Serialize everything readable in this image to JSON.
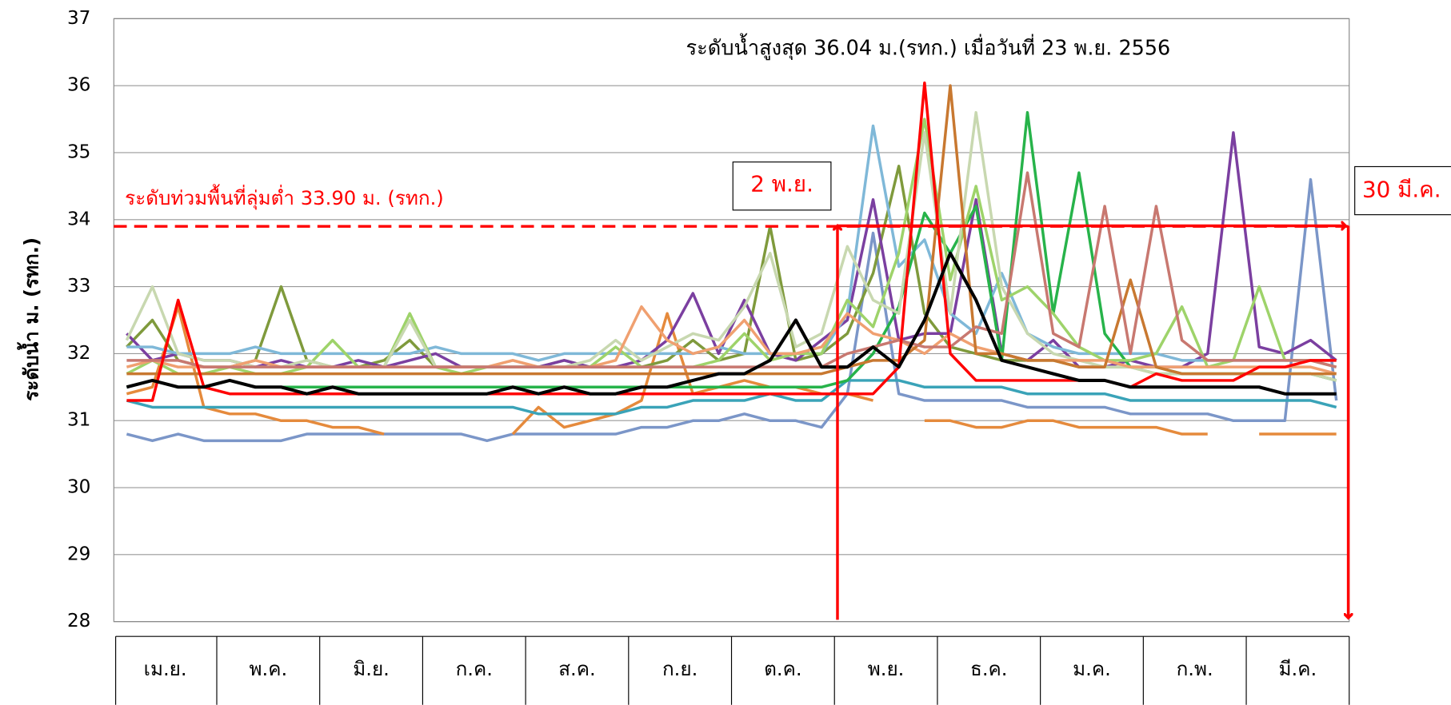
{
  "chart_data": {
    "type": "line",
    "ylabel": "ระดับน้ำ ม. (รทก.)",
    "annotations": {
      "max_level": "ระดับน้ำสูงสุด 36.04 ม.(รทก.) เมื่อวันที่ 23 พ.ย. 2556",
      "flood_level": "ระดับท่วมพื้นที่ลุ่มต่ำ 33.90 ม. (รทก.)",
      "start": "2 พ.ย.",
      "end": "30 มี.ค."
    },
    "threshold": 33.9,
    "threshold_color": "#ff0000",
    "ylim": [
      28,
      37
    ],
    "yticks": [
      28,
      29,
      30,
      31,
      32,
      33,
      34,
      35,
      36,
      37
    ],
    "grid": true,
    "categories": [
      "เม.ย.",
      null,
      null,
      null,
      "พ.ค.",
      null,
      null,
      null,
      "มิ.ย.",
      null,
      null,
      null,
      "ก.ค.",
      null,
      null,
      null,
      "ส.ค.",
      null,
      null,
      null,
      "ก.ย.",
      null,
      null,
      null,
      "ต.ค.",
      null,
      null,
      null,
      "พ.ย.",
      null,
      null,
      null,
      "ธ.ค.",
      null,
      null,
      null,
      "ม.ค.",
      null,
      null,
      null,
      "ก.พ.",
      null,
      null,
      null,
      "มี.ค.",
      null,
      null,
      null
    ],
    "series": [
      {
        "color": "#7b96c8",
        "width": 3,
        "values": [
          30.8,
          30.7,
          30.8,
          30.7,
          30.7,
          30.7,
          30.7,
          30.8,
          30.8,
          30.8,
          30.8,
          30.8,
          30.8,
          30.8,
          30.7,
          30.8,
          30.8,
          30.8,
          30.8,
          30.8,
          30.9,
          30.9,
          31.0,
          31.0,
          31.1,
          31.0,
          31.0,
          30.9,
          31.4,
          33.8,
          31.4,
          31.3,
          31.3,
          31.3,
          31.3,
          31.2,
          31.2,
          31.2,
          31.2,
          31.1,
          31.1,
          31.1,
          31.1,
          31.0,
          31.0,
          31.0,
          34.6,
          31.3
        ]
      },
      {
        "color": "#e58a3c",
        "width": 3,
        "values": [
          31.4,
          31.5,
          32.7,
          31.2,
          31.1,
          31.1,
          31.0,
          31.0,
          30.9,
          30.9,
          30.8,
          null,
          null,
          null,
          null,
          30.8,
          31.2,
          30.9,
          31.0,
          31.1,
          31.3,
          32.6,
          31.4,
          31.5,
          31.6,
          31.5,
          31.5,
          31.4,
          31.4,
          31.3,
          null,
          31.0,
          31.0,
          30.9,
          30.9,
          31.0,
          31.0,
          30.9,
          30.9,
          30.9,
          30.9,
          30.8,
          30.8,
          null,
          30.8,
          30.8,
          30.8,
          30.8
        ]
      },
      {
        "color": "#3aa3b8",
        "width": 3,
        "values": [
          31.3,
          31.2,
          31.2,
          31.2,
          31.2,
          31.2,
          31.2,
          31.2,
          31.2,
          31.2,
          31.2,
          31.2,
          31.2,
          31.2,
          31.2,
          31.2,
          31.1,
          31.1,
          31.1,
          31.1,
          31.2,
          31.2,
          31.3,
          31.3,
          31.3,
          31.4,
          31.3,
          31.3,
          31.6,
          31.6,
          31.6,
          31.5,
          31.5,
          31.5,
          31.5,
          31.4,
          31.4,
          31.4,
          31.4,
          31.3,
          31.3,
          31.3,
          31.3,
          31.3,
          31.3,
          31.3,
          31.3,
          31.2
        ]
      },
      {
        "color": "#7f9a3c",
        "width": 3,
        "values": [
          32.1,
          32.5,
          31.9,
          31.8,
          31.8,
          31.9,
          33.0,
          31.9,
          31.8,
          31.8,
          31.9,
          32.2,
          31.8,
          31.8,
          31.8,
          31.8,
          31.8,
          31.9,
          31.8,
          31.8,
          31.8,
          31.9,
          32.2,
          31.9,
          32.0,
          33.9,
          31.9,
          32.0,
          32.3,
          33.2,
          34.8,
          32.6,
          32.1,
          32.0,
          31.9,
          31.9,
          31.9,
          31.8,
          31.8,
          31.8,
          31.7,
          31.7,
          31.7,
          31.7,
          31.7,
          31.7,
          31.7,
          31.6
        ]
      },
      {
        "color": "#7b3fa0",
        "width": 3,
        "values": [
          32.3,
          31.9,
          32.0,
          31.9,
          31.9,
          31.8,
          31.9,
          31.8,
          31.8,
          31.9,
          31.8,
          31.9,
          32.0,
          31.8,
          31.8,
          31.8,
          31.8,
          31.9,
          31.8,
          31.8,
          31.9,
          32.2,
          32.9,
          32.0,
          32.8,
          32.0,
          31.9,
          32.2,
          32.5,
          34.3,
          32.2,
          32.3,
          32.3,
          34.3,
          32.0,
          31.9,
          32.2,
          31.8,
          31.8,
          31.9,
          31.8,
          31.8,
          32.0,
          35.3,
          32.1,
          32.0,
          32.2,
          31.9
        ]
      },
      {
        "color": "#7fb8d8",
        "width": 3,
        "values": [
          32.1,
          32.1,
          32.0,
          32.0,
          32.0,
          32.1,
          32.0,
          32.0,
          32.0,
          32.0,
          32.0,
          32.0,
          32.1,
          32.0,
          32.0,
          32.0,
          31.9,
          32.0,
          32.0,
          32.0,
          32.0,
          32.0,
          32.0,
          32.1,
          32.0,
          32.0,
          32.0,
          32.0,
          32.6,
          35.4,
          33.3,
          33.7,
          32.6,
          32.3,
          33.2,
          32.3,
          32.1,
          32.0,
          32.0,
          32.0,
          32.0,
          31.9,
          31.9,
          31.9,
          31.9,
          31.9,
          31.9,
          31.9
        ]
      },
      {
        "color": "#27b34a",
        "width": 3,
        "values": [
          31.5,
          31.6,
          31.5,
          31.5,
          31.6,
          31.5,
          31.5,
          31.5,
          31.5,
          31.5,
          31.5,
          31.5,
          31.5,
          31.5,
          31.5,
          31.5,
          31.5,
          31.5,
          31.5,
          31.5,
          31.5,
          31.5,
          31.5,
          31.5,
          31.5,
          31.5,
          31.5,
          31.5,
          31.6,
          32.0,
          32.7,
          34.1,
          33.5,
          34.2,
          31.9,
          35.6,
          32.6,
          34.7,
          32.3,
          31.8,
          31.8,
          31.7,
          31.7,
          31.7,
          31.7,
          31.7,
          31.7,
          31.6
        ]
      },
      {
        "color": "#9ed36a",
        "width": 3,
        "values": [
          31.7,
          31.9,
          31.7,
          31.7,
          31.8,
          31.7,
          31.7,
          31.8,
          32.2,
          31.8,
          31.8,
          32.6,
          31.8,
          31.7,
          31.8,
          31.8,
          31.8,
          31.8,
          31.8,
          32.1,
          31.8,
          31.8,
          31.8,
          31.9,
          32.3,
          31.9,
          32.0,
          32.0,
          32.8,
          32.4,
          33.5,
          35.5,
          33.1,
          34.5,
          32.8,
          33.0,
          32.6,
          32.1,
          31.9,
          31.9,
          32.0,
          32.7,
          31.8,
          31.9,
          33.0,
          31.9,
          31.9,
          31.8
        ]
      },
      {
        "color": "#c8d8b0",
        "width": 3,
        "values": [
          32.2,
          33.0,
          32.0,
          31.9,
          31.9,
          31.8,
          31.8,
          31.9,
          31.8,
          31.8,
          31.8,
          32.5,
          31.8,
          31.8,
          31.8,
          31.9,
          31.8,
          31.8,
          31.9,
          32.2,
          31.9,
          32.1,
          32.3,
          32.2,
          32.7,
          33.5,
          32.1,
          32.3,
          33.6,
          32.8,
          32.6,
          35.3,
          32.6,
          35.6,
          33.0,
          32.3,
          32.0,
          31.9,
          31.8,
          31.8,
          31.7,
          31.7,
          31.7,
          31.7,
          31.7,
          31.7,
          31.7,
          31.6
        ]
      },
      {
        "color": "#f0a070",
        "width": 3,
        "values": [
          31.8,
          31.9,
          31.8,
          31.8,
          31.8,
          31.9,
          31.8,
          31.8,
          31.8,
          31.8,
          31.8,
          31.8,
          31.8,
          31.8,
          31.8,
          31.9,
          31.8,
          31.8,
          31.8,
          31.9,
          32.7,
          32.2,
          32.0,
          32.1,
          32.5,
          32.0,
          32.0,
          32.1,
          32.6,
          32.3,
          32.2,
          32.0,
          32.3,
          32.1,
          32.0,
          31.9,
          31.9,
          31.9,
          31.9,
          31.8,
          31.8,
          31.8,
          31.8,
          31.8,
          31.8,
          31.8,
          31.8,
          31.7
        ]
      },
      {
        "color": "#c87830",
        "width": 3,
        "values": [
          31.7,
          31.7,
          31.7,
          31.7,
          31.7,
          31.7,
          31.7,
          31.7,
          31.7,
          31.7,
          31.7,
          31.7,
          31.7,
          31.7,
          31.7,
          31.7,
          31.7,
          31.7,
          31.7,
          31.7,
          31.7,
          31.7,
          31.7,
          31.7,
          31.7,
          31.7,
          31.7,
          31.7,
          31.8,
          31.9,
          31.9,
          32.2,
          36.0,
          32.0,
          32.0,
          31.9,
          31.9,
          31.8,
          31.8,
          33.1,
          31.8,
          31.7,
          31.7,
          31.7,
          31.7,
          31.7,
          31.7,
          31.7
        ]
      },
      {
        "color": "#c87870",
        "width": 3,
        "values": [
          31.9,
          31.9,
          31.9,
          31.8,
          31.8,
          31.8,
          31.8,
          31.8,
          31.8,
          31.8,
          31.8,
          31.8,
          31.8,
          31.8,
          31.8,
          31.8,
          31.8,
          31.8,
          31.8,
          31.8,
          31.8,
          31.8,
          31.8,
          31.8,
          31.8,
          31.8,
          31.8,
          31.8,
          32.0,
          32.1,
          32.2,
          32.1,
          32.1,
          32.4,
          32.3,
          34.7,
          32.3,
          32.1,
          34.2,
          32.0,
          34.2,
          32.2,
          31.9,
          31.9,
          31.9,
          31.9,
          31.9,
          31.8
        ]
      },
      {
        "color": "#ff0000",
        "width": 3,
        "values": [
          31.3,
          31.3,
          32.8,
          31.5,
          31.4,
          31.4,
          31.4,
          31.4,
          31.4,
          31.4,
          31.4,
          31.4,
          31.4,
          31.4,
          31.4,
          31.4,
          31.4,
          31.4,
          31.4,
          31.4,
          31.4,
          31.4,
          31.4,
          31.4,
          31.4,
          31.4,
          31.4,
          31.4,
          31.4,
          31.4,
          31.8,
          36.04,
          32.0,
          31.6,
          31.6,
          31.6,
          31.6,
          31.6,
          31.6,
          31.5,
          31.7,
          31.6,
          31.6,
          31.6,
          31.8,
          31.8,
          31.9,
          31.9
        ]
      },
      {
        "color": "#000000",
        "width": 3.5,
        "values": [
          31.5,
          31.6,
          31.5,
          31.5,
          31.6,
          31.5,
          31.5,
          31.4,
          31.5,
          31.4,
          31.4,
          31.4,
          31.4,
          31.4,
          31.4,
          31.5,
          31.4,
          31.5,
          31.4,
          31.4,
          31.5,
          31.5,
          31.6,
          31.7,
          31.7,
          31.9,
          32.5,
          31.8,
          31.8,
          32.1,
          31.8,
          32.5,
          33.5,
          32.8,
          31.9,
          31.8,
          31.7,
          31.6,
          31.6,
          31.5,
          31.5,
          31.5,
          31.5,
          31.5,
          31.5,
          31.4,
          31.4,
          31.4
        ]
      }
    ]
  }
}
